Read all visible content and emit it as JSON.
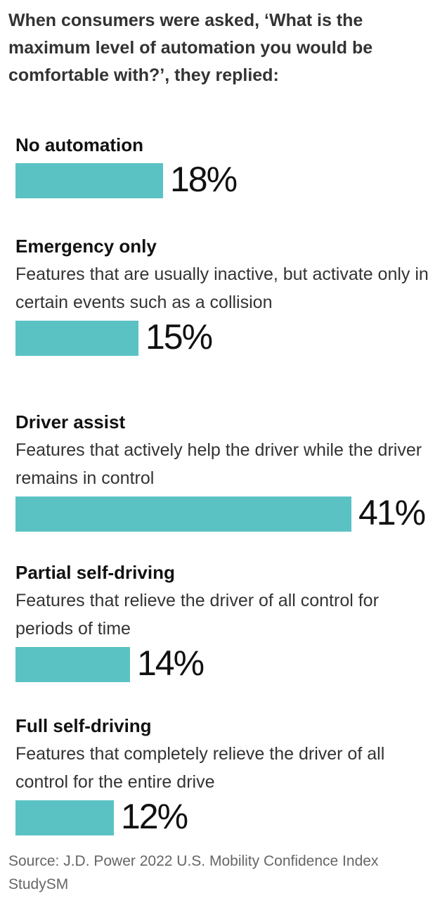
{
  "title": "When consumers were asked, ‘What is the maximum level of automation you would be comfortable with?’, they replied:",
  "accent_color": "#5bc2c4",
  "chart_data": {
    "type": "bar",
    "orientation": "horizontal",
    "title": "When consumers were asked, ‘What is the maximum level of automation you would be comfortable with?’, they replied:",
    "unit": "%",
    "categories": [
      "No automation",
      "Emergency only",
      "Driver assist",
      "Partial self-driving",
      "Full self-driving"
    ],
    "descriptions": [
      "",
      "Features that are usually inactive, but activate only in certain events such as a collision",
      "Features that actively help the driver while the driver remains in control",
      "Features that relieve the driver of all control for periods of time",
      "Features that completely relieve the driver of all control for the entire drive"
    ],
    "values": [
      18,
      15,
      41,
      14,
      12
    ],
    "value_labels": [
      "18%",
      "15%",
      "41%",
      "14%",
      "12%"
    ],
    "xlim": [
      0,
      41
    ],
    "grid": false,
    "legend": "none"
  },
  "source": "Source: J.D. Power 2022 U.S. Mobility Confidence Index StudySM"
}
